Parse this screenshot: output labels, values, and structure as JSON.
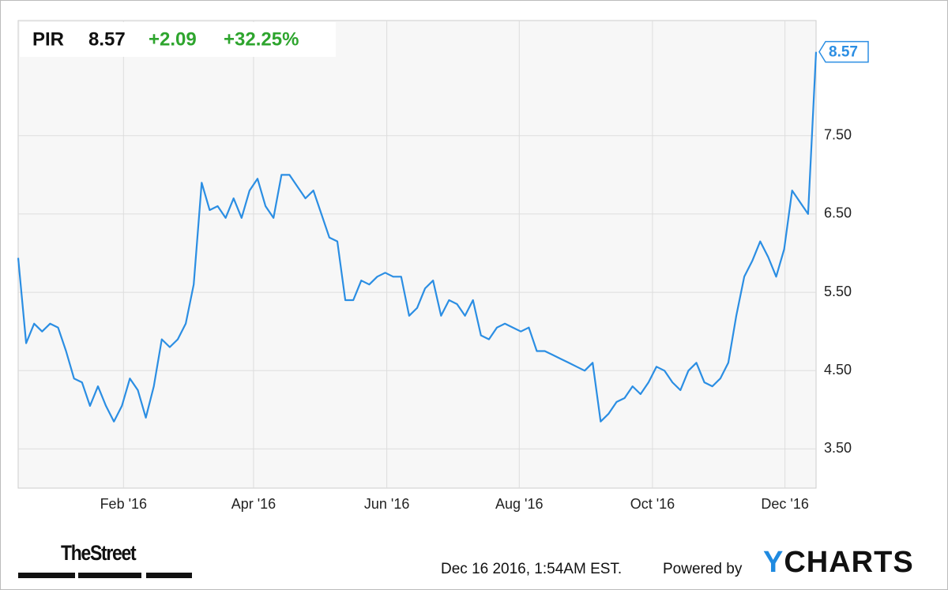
{
  "header": {
    "ticker": "PIR",
    "price": 8.57,
    "change": "+2.09",
    "change_pct": "+32.25%"
  },
  "chart_data": {
    "type": "line",
    "color": "#2b8ee3",
    "grid": true,
    "values": [
      5.94,
      4.85,
      5.1,
      5.0,
      5.1,
      5.05,
      4.75,
      4.4,
      4.35,
      4.05,
      4.3,
      4.05,
      3.85,
      4.05,
      4.4,
      4.25,
      3.9,
      4.3,
      4.9,
      4.8,
      4.9,
      5.1,
      5.6,
      6.9,
      6.55,
      6.6,
      6.45,
      6.7,
      6.45,
      6.8,
      6.95,
      6.6,
      6.45,
      7.0,
      7.0,
      6.85,
      6.7,
      6.8,
      6.5,
      6.2,
      6.15,
      5.4,
      5.4,
      5.65,
      5.6,
      5.7,
      5.75,
      5.7,
      5.7,
      5.2,
      5.3,
      5.55,
      5.65,
      5.2,
      5.4,
      5.35,
      5.2,
      5.4,
      4.95,
      4.9,
      5.05,
      5.1,
      5.05,
      5.0,
      5.05,
      4.75,
      4.75,
      4.7,
      4.65,
      4.6,
      4.55,
      4.5,
      4.6,
      3.85,
      3.95,
      4.1,
      4.15,
      4.3,
      4.2,
      4.35,
      4.55,
      4.5,
      4.35,
      4.25,
      4.5,
      4.6,
      4.35,
      4.3,
      4.4,
      4.6,
      5.2,
      5.7,
      5.9,
      6.15,
      5.95,
      5.7,
      6.05,
      6.8,
      6.65,
      6.5,
      8.57
    ],
    "xlim": [
      0,
      100
    ],
    "xticks": [
      {
        "value": 13.2,
        "label": "Feb '16"
      },
      {
        "value": 29.5,
        "label": "Apr '16"
      },
      {
        "value": 46.2,
        "label": "Jun '16"
      },
      {
        "value": 62.8,
        "label": "Aug '16"
      },
      {
        "value": 79.5,
        "label": "Oct '16"
      },
      {
        "value": 96.1,
        "label": "Dec '16"
      }
    ],
    "ylim": [
      3.0,
      8.97
    ],
    "yticks": [
      {
        "value": 3.5,
        "label": "3.50"
      },
      {
        "value": 4.5,
        "label": "4.50"
      },
      {
        "value": 5.5,
        "label": "5.50"
      },
      {
        "value": 6.5,
        "label": "6.50"
      },
      {
        "value": 7.5,
        "label": "7.50"
      }
    ]
  },
  "footer": {
    "brand": "TheStreet",
    "timestamp": "Dec 16 2016, 1:54AM EST.",
    "powered": "Powered by",
    "provider": "YCHARTS"
  }
}
